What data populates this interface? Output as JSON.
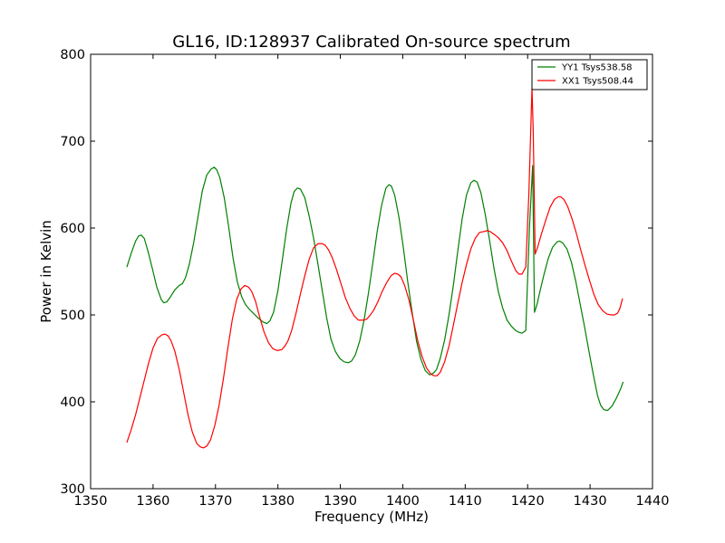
{
  "chart_data": {
    "type": "line",
    "title": "GL16, ID:128937 Calibrated On-source spectrum",
    "xlabel": "Frequency (MHz)",
    "ylabel": "Power in Kelvin",
    "xlim": [
      1350,
      1440
    ],
    "ylim": [
      300,
      800
    ],
    "xticks": [
      1350,
      1360,
      1370,
      1380,
      1390,
      1400,
      1410,
      1420,
      1430,
      1440
    ],
    "yticks": [
      300,
      400,
      500,
      600,
      700,
      800
    ],
    "grid": false,
    "legend_position": "top-right",
    "series": [
      {
        "name": "YY1 Tsys538.58",
        "color": "#008000",
        "x": [
          1355.8,
          1356.5,
          1357.2,
          1357.7,
          1358.1,
          1358.6,
          1359.2,
          1359.9,
          1360.6,
          1361.3,
          1361.7,
          1362.2,
          1362.8,
          1363.5,
          1364.2,
          1364.7,
          1365.2,
          1365.8,
          1366.5,
          1367.2,
          1367.9,
          1368.6,
          1369.3,
          1369.8,
          1370.2,
          1370.7,
          1371.4,
          1372.1,
          1372.8,
          1373.5,
          1374.2,
          1374.8,
          1375.5,
          1376.2,
          1376.9,
          1377.6,
          1378.2,
          1378.7,
          1379.3,
          1380.0,
          1380.7,
          1381.4,
          1382.1,
          1382.6,
          1383.1,
          1383.6,
          1384.3,
          1385.0,
          1385.7,
          1386.4,
          1387.1,
          1387.8,
          1388.5,
          1389.2,
          1389.9,
          1390.6,
          1391.3,
          1391.8,
          1392.4,
          1393.1,
          1393.8,
          1394.5,
          1395.2,
          1395.9,
          1396.6,
          1397.3,
          1397.8,
          1398.2,
          1398.7,
          1399.4,
          1400.1,
          1400.8,
          1401.5,
          1402.2,
          1402.9,
          1403.6,
          1404.3,
          1404.9,
          1405.4,
          1406.0,
          1406.7,
          1407.4,
          1408.1,
          1408.8,
          1409.5,
          1410.2,
          1410.9,
          1411.4,
          1411.9,
          1412.5,
          1413.2,
          1413.9,
          1414.6,
          1415.3,
          1416.0,
          1416.7,
          1417.4,
          1418.1,
          1418.6,
          1419.1,
          1419.7,
          1420.3,
          1420.8,
          1421.1,
          1421.5,
          1422.0,
          1422.6,
          1423.3,
          1424.0,
          1424.7,
          1425.1,
          1425.6,
          1426.3,
          1427.0,
          1427.7,
          1428.4,
          1429.1,
          1429.8,
          1430.5,
          1431.2,
          1431.7,
          1432.2,
          1432.8,
          1433.5,
          1434.2,
          1434.9,
          1435.3
        ],
        "y": [
          555,
          571,
          585,
          591,
          592,
          588,
          573,
          553,
          532,
          518,
          514,
          515,
          521,
          529,
          534,
          536,
          543,
          558,
          583,
          613,
          643,
          661,
          668,
          670,
          667,
          658,
          635,
          602,
          566,
          538,
          521,
          512,
          506,
          501,
          496,
          492,
          490,
          493,
          503,
          528,
          563,
          599,
          629,
          642,
          646,
          645,
          635,
          614,
          589,
          559,
          528,
          497,
          472,
          458,
          450,
          446,
          445,
          447,
          454,
          470,
          494,
          525,
          560,
          596,
          626,
          646,
          650,
          648,
          638,
          612,
          577,
          538,
          503,
          470,
          449,
          436,
          431,
          433,
          437,
          450,
          471,
          500,
          534,
          573,
          610,
          638,
          652,
          655,
          653,
          641,
          616,
          586,
          554,
          527,
          508,
          494,
          487,
          482,
          480,
          479,
          482,
          602,
          672,
          503,
          512,
          528,
          546,
          565,
          578,
          584,
          585,
          583,
          576,
          561,
          539,
          513,
          487,
          459,
          432,
          407,
          396,
          391,
          390,
          395,
          404,
          415,
          423
        ]
      },
      {
        "name": "XX1 Tsys508.44",
        "color": "#ff0000",
        "x": [
          1355.8,
          1356.5,
          1357.2,
          1357.9,
          1358.6,
          1359.3,
          1360.0,
          1360.7,
          1361.4,
          1361.9,
          1362.4,
          1362.9,
          1363.5,
          1364.2,
          1364.9,
          1365.6,
          1366.3,
          1367.0,
          1367.6,
          1368.1,
          1368.6,
          1369.2,
          1369.9,
          1370.6,
          1371.3,
          1372.0,
          1372.7,
          1373.4,
          1374.1,
          1374.7,
          1375.3,
          1375.8,
          1376.4,
          1377.1,
          1377.8,
          1378.5,
          1379.2,
          1379.9,
          1380.6,
          1381.1,
          1381.6,
          1382.2,
          1382.9,
          1383.6,
          1384.3,
          1385.0,
          1385.7,
          1386.4,
          1387.1,
          1387.6,
          1388.1,
          1388.7,
          1389.4,
          1390.1,
          1390.8,
          1391.5,
          1392.2,
          1392.9,
          1393.6,
          1394.2,
          1394.7,
          1395.3,
          1396.0,
          1396.7,
          1397.4,
          1398.1,
          1398.7,
          1399.2,
          1399.7,
          1400.3,
          1401.0,
          1401.7,
          1402.4,
          1403.1,
          1403.8,
          1404.5,
          1405.0,
          1405.5,
          1406.0,
          1406.7,
          1407.4,
          1408.1,
          1408.8,
          1409.5,
          1410.2,
          1410.9,
          1411.6,
          1412.3,
          1413.0,
          1413.5,
          1414.0,
          1414.6,
          1415.3,
          1416.0,
          1416.7,
          1417.4,
          1418.1,
          1418.6,
          1419.1,
          1419.7,
          1420.2,
          1420.7,
          1420.9,
          1421.2,
          1421.6,
          1422.2,
          1422.9,
          1423.6,
          1424.3,
          1424.9,
          1425.3,
          1425.8,
          1426.4,
          1427.1,
          1427.8,
          1428.5,
          1429.2,
          1429.9,
          1430.6,
          1431.3,
          1432.0,
          1432.7,
          1433.4,
          1433.9,
          1434.4,
          1434.8,
          1435.2
        ],
        "y": [
          353,
          368,
          385,
          405,
          425,
          445,
          462,
          473,
          477,
          478,
          476,
          470,
          458,
          437,
          411,
          385,
          365,
          352,
          348,
          347,
          349,
          356,
          373,
          397,
          428,
          463,
          495,
          518,
          530,
          534,
          532,
          527,
          516,
          497,
          480,
          468,
          461,
          459,
          460,
          464,
          470,
          482,
          502,
          524,
          545,
          564,
          577,
          582,
          582,
          580,
          575,
          566,
          552,
          536,
          520,
          508,
          499,
          494,
          494,
          495,
          499,
          505,
          515,
          527,
          537,
          545,
          548,
          547,
          544,
          534,
          517,
          494,
          470,
          452,
          439,
          432,
          430,
          430,
          434,
          446,
          464,
          488,
          513,
          537,
          558,
          576,
          588,
          595,
          596,
          597,
          596,
          593,
          589,
          583,
          574,
          562,
          551,
          547,
          547,
          555,
          640,
          762,
          710,
          570,
          578,
          593,
          609,
          624,
          633,
          636,
          636,
          633,
          625,
          611,
          594,
          575,
          557,
          540,
          524,
          512,
          505,
          501,
          500,
          500,
          502,
          508,
          519
        ]
      }
    ]
  }
}
